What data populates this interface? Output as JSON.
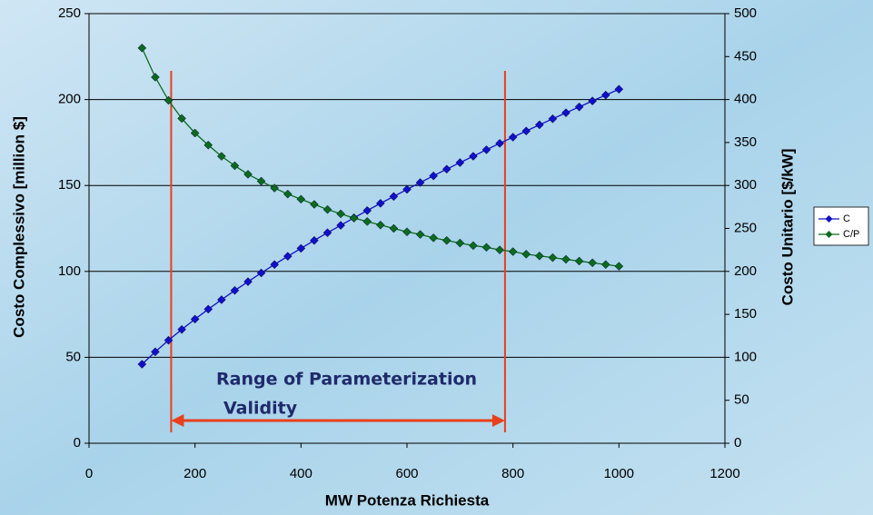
{
  "chart_data": {
    "type": "line",
    "x_label": "MW Potenza Richiesta",
    "y_label": "Costo Complessivo [million $]",
    "y2_label": "Costo Unitario [$/kW]",
    "x": [
      100,
      125,
      150,
      175,
      200,
      225,
      250,
      275,
      300,
      325,
      350,
      375,
      400,
      425,
      450,
      475,
      500,
      525,
      550,
      575,
      600,
      625,
      650,
      675,
      700,
      725,
      750,
      775,
      800,
      825,
      850,
      875,
      900,
      925,
      950,
      975,
      1000
    ],
    "series": [
      {
        "name": "C",
        "color": "#1010c8",
        "values": [
          46.0,
          53.2,
          59.9,
          66.2,
          72.2,
          78.0,
          83.5,
          88.9,
          94.0,
          99.1,
          104.0,
          108.8,
          113.4,
          118.0,
          122.5,
          126.8,
          131.2,
          135.4,
          139.6,
          143.6,
          147.7,
          151.7,
          155.6,
          159.5,
          163.3,
          167.0,
          170.8,
          174.5,
          178.1,
          181.7,
          185.3,
          188.8,
          192.3,
          195.7,
          199.2,
          202.6,
          206.0
        ]
      },
      {
        "name": "C/P",
        "color": "#0b6b1e",
        "axis": "y2",
        "values": [
          460,
          426,
          399,
          378,
          361,
          347,
          334,
          323,
          313,
          305,
          297,
          290,
          284,
          278,
          272,
          267,
          262,
          258,
          254,
          250,
          246,
          243,
          239,
          236,
          233,
          230,
          228,
          225,
          223,
          220,
          218,
          216,
          214,
          212,
          210,
          208,
          206
        ]
      }
    ],
    "xlim": [
      0,
      1200
    ],
    "xticks": [
      0,
      200,
      400,
      600,
      800,
      1000,
      1200
    ],
    "ylim": [
      0,
      250
    ],
    "yticks": [
      0,
      50,
      100,
      150,
      200,
      250
    ],
    "y2lim": [
      0,
      500
    ],
    "y2ticks": [
      0,
      50,
      100,
      150,
      200,
      250,
      300,
      350,
      400,
      450,
      500
    ],
    "grid": true,
    "legend": "right",
    "range_x": [
      155,
      785
    ],
    "range_color": "#e8401c",
    "annotation": [
      "Range of Parameterization",
      "Validity"
    ]
  }
}
